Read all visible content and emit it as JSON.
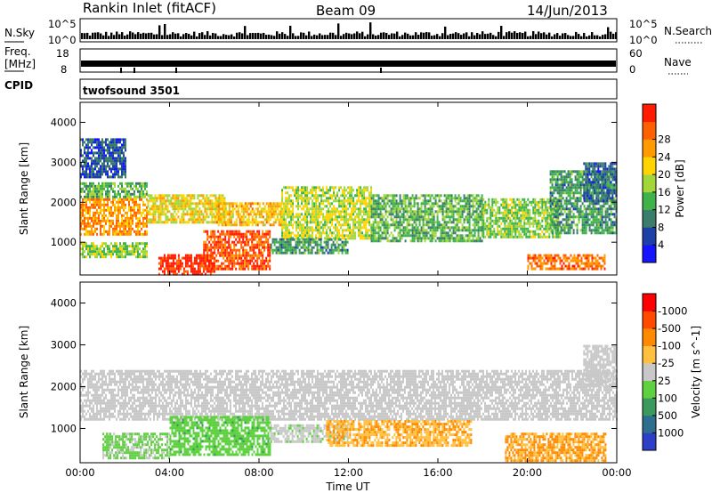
{
  "header": {
    "title": "Rankin Inlet (fitACF)",
    "beam": "Beam 09",
    "date": "14/Jun/2013"
  },
  "noise_panel": {
    "left_label": "N.Sky",
    "left_ticks": [
      "10^5",
      "10^0"
    ],
    "right_label": "N.Search",
    "right_ticks": [
      "10^5",
      "10^0"
    ]
  },
  "freq_panel": {
    "left_label_line1": "Freq.",
    "left_label_line2": "[MHz]",
    "left_ticks": [
      "18",
      "8"
    ],
    "right_label": "Nave",
    "right_ticks": [
      "60",
      "0"
    ]
  },
  "cpid_panel": {
    "label": "CPID",
    "value": "twofsound 3501"
  },
  "chart_data": [
    {
      "type": "heatmap",
      "title": "",
      "xlabel": "Time UT",
      "ylabel": "Slant Range [km]",
      "x_ticks": [
        "00:00",
        "04:00",
        "08:00",
        "12:00",
        "16:00",
        "20:00",
        "00:00"
      ],
      "xlim": [
        0,
        24
      ],
      "y_ticks": [
        "1000",
        "2000",
        "3000",
        "4000"
      ],
      "ylim": [
        180,
        4500
      ],
      "colorbar": {
        "label": "Power [dB]",
        "ticks": [
          "4",
          "8",
          "12",
          "16",
          "20",
          "24",
          "28"
        ],
        "range": [
          0,
          30
        ],
        "colors": [
          "#1414ff",
          "#1c3fa8",
          "#3a7d6a",
          "#3fb24a",
          "#a3d63a",
          "#ffd400",
          "#ff9a00",
          "#ff6000",
          "#ff1a00"
        ]
      },
      "regions": [
        {
          "t0": 0.0,
          "t1": 3.0,
          "r0": 1200,
          "r1": 2100,
          "level": 22
        },
        {
          "t0": 0.0,
          "t1": 3.0,
          "r0": 2100,
          "r1": 2500,
          "level": 12
        },
        {
          "t0": 0.0,
          "t1": 3.0,
          "r0": 600,
          "r1": 1000,
          "level": 14
        },
        {
          "t0": 0.0,
          "t1": 2.0,
          "r0": 2600,
          "r1": 3600,
          "level": 6
        },
        {
          "t0": 3.0,
          "t1": 6.5,
          "r0": 1500,
          "r1": 2200,
          "level": 18
        },
        {
          "t0": 3.5,
          "t1": 6.0,
          "r0": 180,
          "r1": 700,
          "level": 29
        },
        {
          "t0": 5.5,
          "t1": 8.5,
          "r0": 300,
          "r1": 1300,
          "level": 26
        },
        {
          "t0": 6.0,
          "t1": 9.0,
          "r0": 1400,
          "r1": 2000,
          "level": 20
        },
        {
          "t0": 9.0,
          "t1": 13.0,
          "r0": 1100,
          "r1": 2400,
          "level": 16
        },
        {
          "t0": 8.5,
          "t1": 12.0,
          "r0": 700,
          "r1": 1100,
          "level": 10
        },
        {
          "t0": 13.0,
          "t1": 18.0,
          "r0": 1000,
          "r1": 2200,
          "level": 12
        },
        {
          "t0": 18.0,
          "t1": 21.5,
          "r0": 1100,
          "r1": 2100,
          "level": 14
        },
        {
          "t0": 20.0,
          "t1": 23.5,
          "r0": 300,
          "r1": 700,
          "level": 24
        },
        {
          "t0": 21.0,
          "t1": 24.0,
          "r0": 1200,
          "r1": 2800,
          "level": 10
        },
        {
          "t0": 22.5,
          "t1": 24.0,
          "r0": 2000,
          "r1": 3000,
          "level": 7
        }
      ]
    },
    {
      "type": "heatmap",
      "title": "",
      "xlabel": "Time UT",
      "ylabel": "Slant Range [km]",
      "x_ticks": [
        "00:00",
        "04:00",
        "08:00",
        "12:00",
        "16:00",
        "20:00",
        "00:00"
      ],
      "xlim": [
        0,
        24
      ],
      "y_ticks": [
        "1000",
        "2000",
        "3000",
        "4000"
      ],
      "ylim": [
        180,
        4500
      ],
      "colorbar": {
        "label": "Velocity [m s^-1]",
        "ticks": [
          "1000",
          "500",
          "100",
          "25",
          "-25",
          "-100",
          "-500",
          "-1000"
        ],
        "range": [
          1000,
          -1000
        ],
        "colors": [
          "#2e3fc7",
          "#2e6f8f",
          "#3a9a5c",
          "#5fd040",
          "#c8c8c8",
          "#ffc040",
          "#ff8a00",
          "#ff4a00",
          "#ff0000"
        ]
      },
      "regions": [
        {
          "t0": 0.0,
          "t1": 24.0,
          "r0": 1200,
          "r1": 2400,
          "level": 0
        },
        {
          "t0": 1.0,
          "t1": 4.0,
          "r0": 300,
          "r1": 900,
          "level": 150
        },
        {
          "t0": 4.0,
          "t1": 8.5,
          "r0": 400,
          "r1": 1300,
          "level": 250
        },
        {
          "t0": 8.5,
          "t1": 12.0,
          "r0": 700,
          "r1": 1100,
          "level": 40
        },
        {
          "t0": 11.0,
          "t1": 17.5,
          "r0": 600,
          "r1": 1200,
          "level": -300
        },
        {
          "t0": 19.0,
          "t1": 23.5,
          "r0": 250,
          "r1": 900,
          "level": -350
        },
        {
          "t0": 22.5,
          "t1": 24.0,
          "r0": 2000,
          "r1": 3000,
          "level": 0
        }
      ]
    }
  ]
}
